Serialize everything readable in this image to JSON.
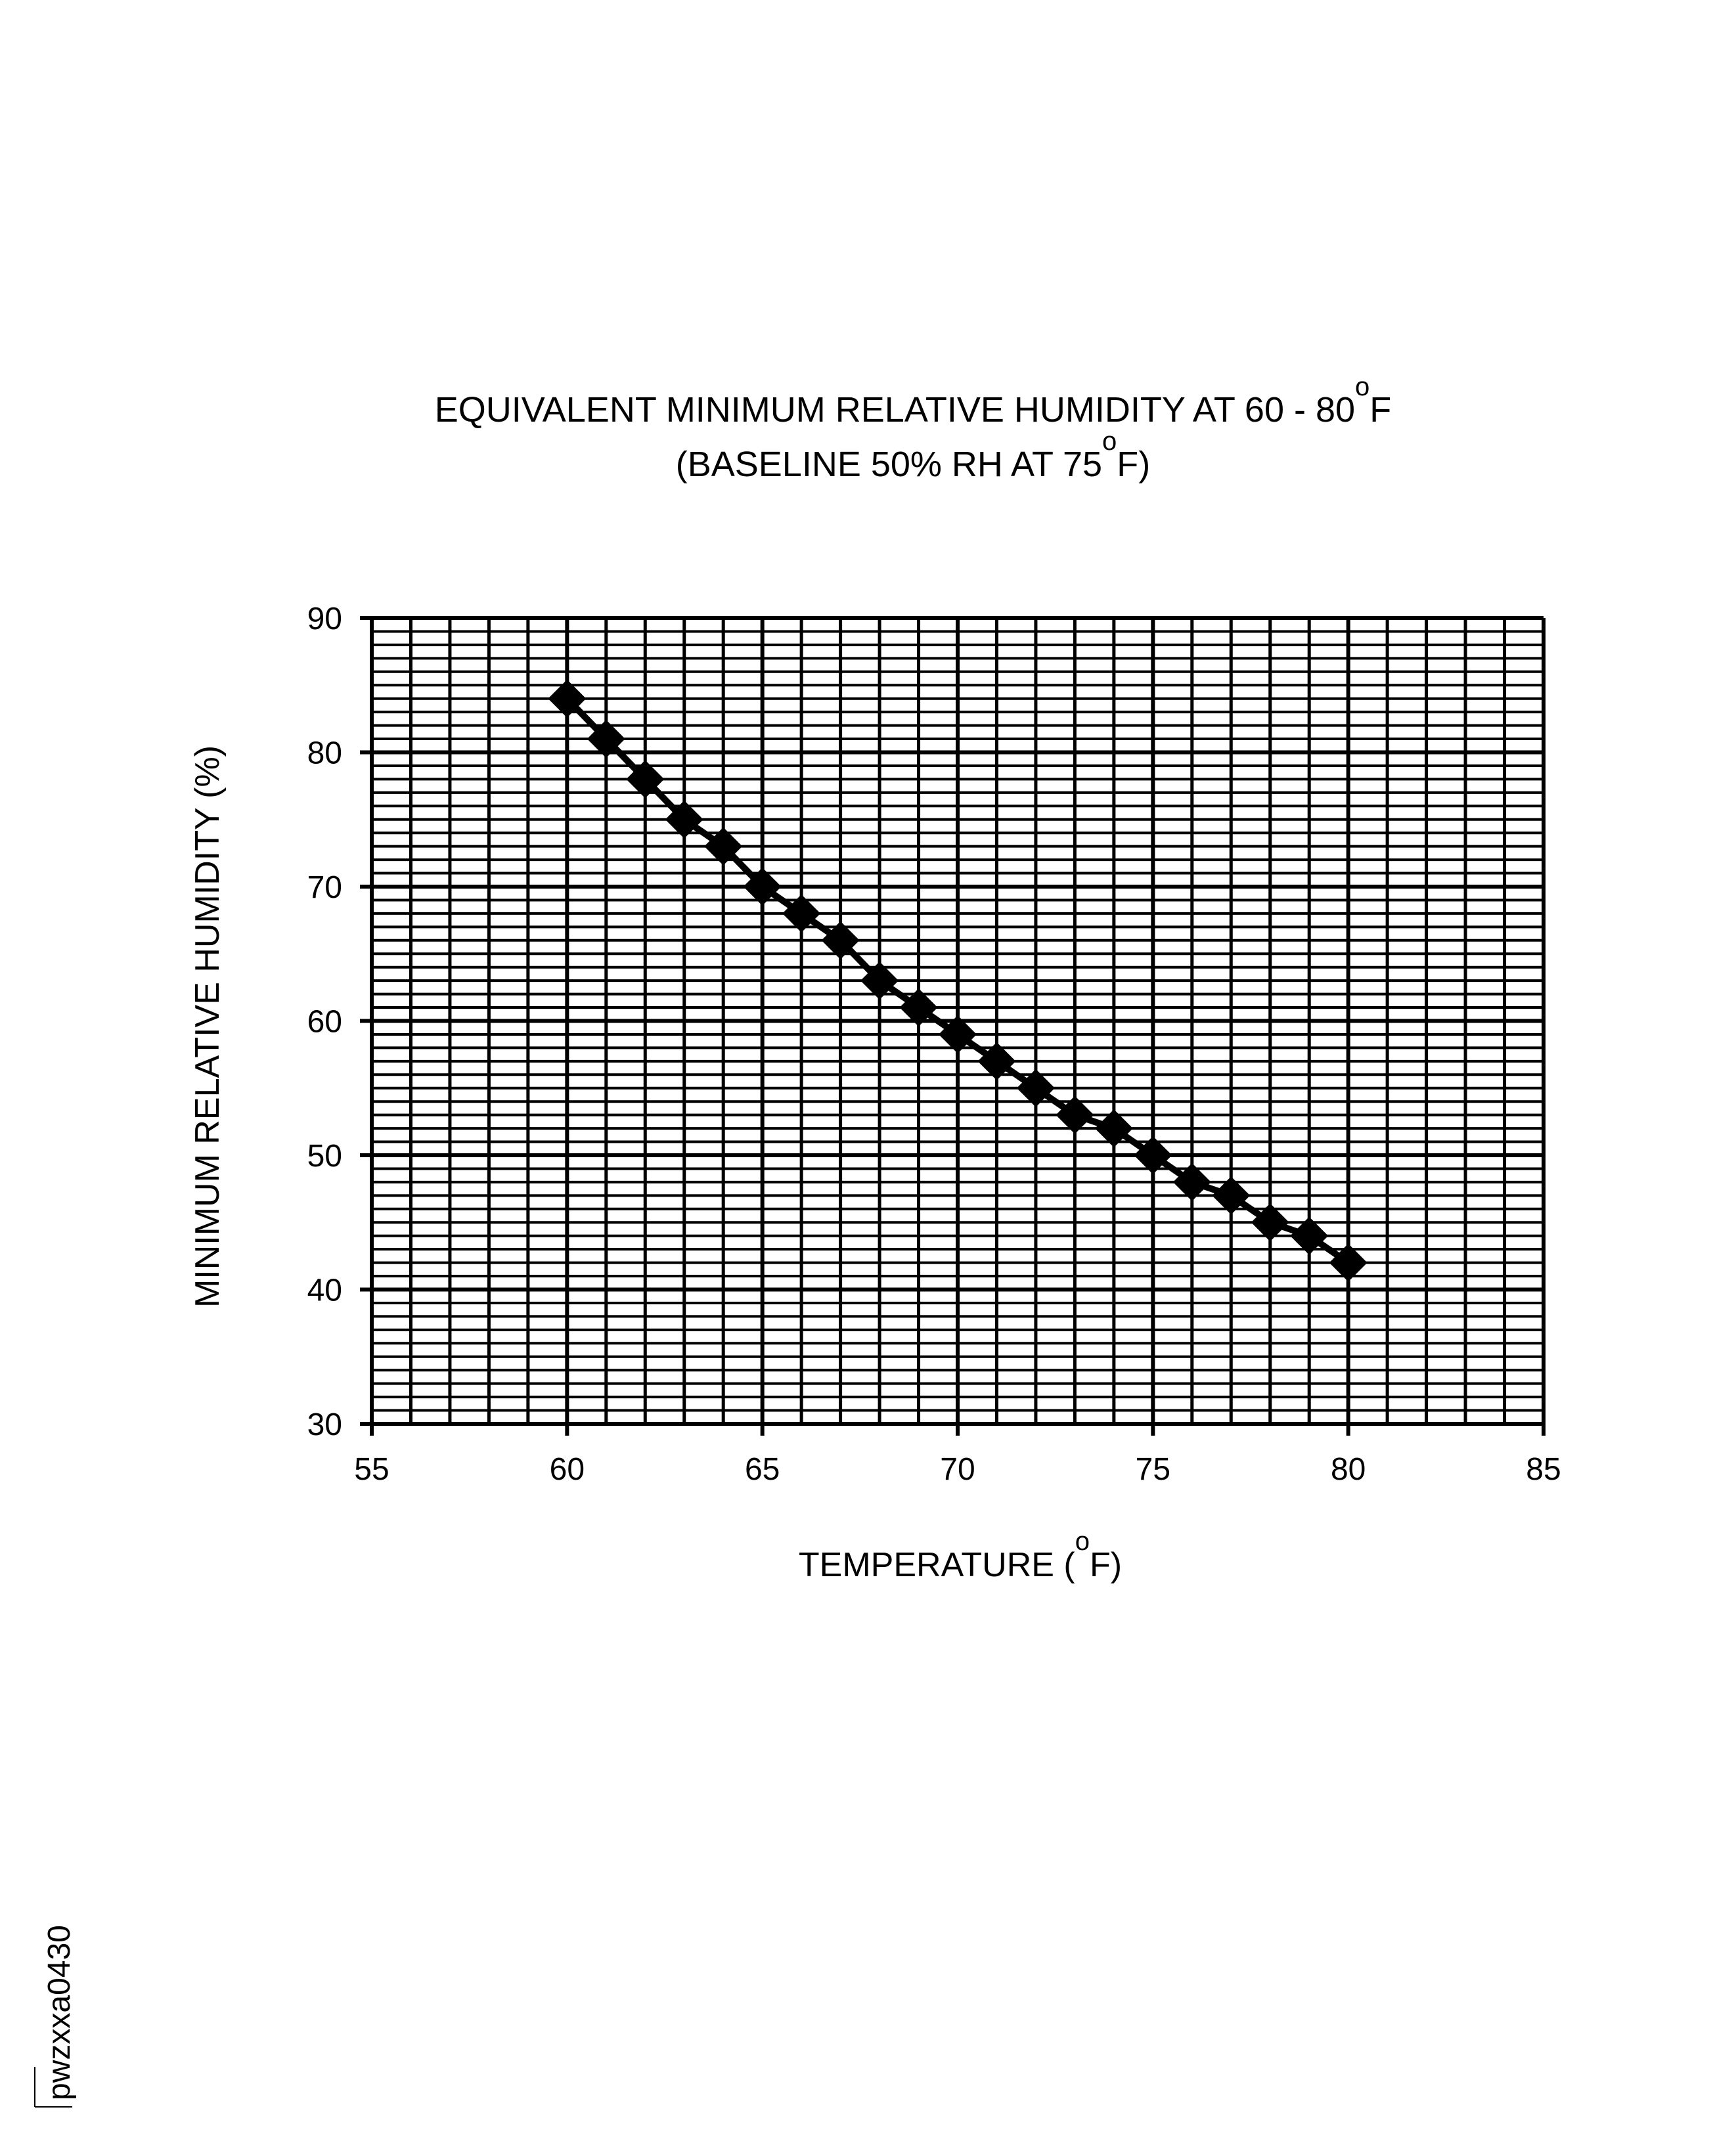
{
  "chart_data": {
    "type": "line",
    "title": {
      "line1_main": "EQUIVALENT MINIMUM RELATIVE HUMIDITY AT 60 - 80",
      "line1_sup": "o",
      "line1_end": "F",
      "line2_main": "(BASELINE 50% RH AT 75",
      "line2_sup": "o",
      "line2_end": "F)"
    },
    "xlabel": {
      "main": "TEMPERATURE (",
      "sup": "o",
      "end": "F)"
    },
    "ylabel": "MINIMUM RELATIVE HUMIDITY (%)",
    "xlim": [
      55,
      85
    ],
    "ylim": [
      30,
      90
    ],
    "x_ticks": [
      "55",
      "60",
      "65",
      "70",
      "75",
      "80",
      "85"
    ],
    "y_ticks": [
      "30",
      "40",
      "50",
      "60",
      "70",
      "80",
      "90"
    ],
    "grid": true,
    "grid_minor_x": 1,
    "grid_minor_y": 1,
    "marker": "diamond",
    "line_color": "#000000",
    "legend": "none",
    "x": [
      60,
      61,
      62,
      63,
      64,
      65,
      66,
      67,
      68,
      69,
      70,
      71,
      72,
      73,
      74,
      75,
      76,
      77,
      78,
      79,
      80
    ],
    "y": [
      84,
      81,
      78,
      75,
      73,
      70,
      68,
      66,
      63,
      61,
      59,
      57,
      55,
      53,
      52,
      50,
      48,
      47,
      45,
      44,
      42
    ]
  },
  "footer_code": "pwzxxa0430"
}
